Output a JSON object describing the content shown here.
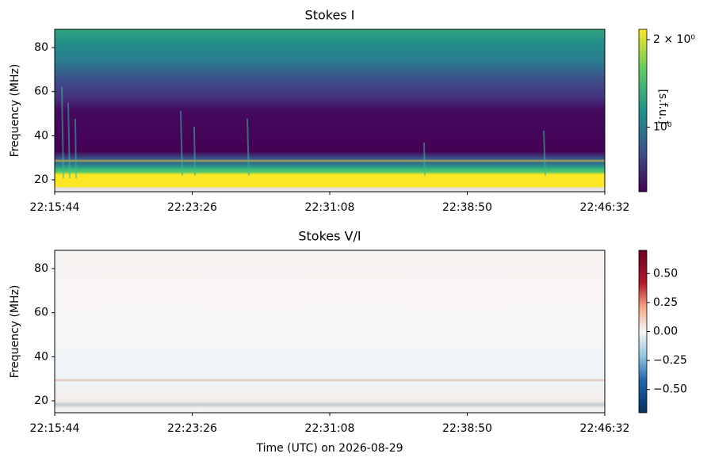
{
  "chart_data": [
    {
      "type": "spectrogram",
      "title": "Stokes I",
      "y_label": "Frequency (MHz)",
      "xlim": [
        80144,
        81992
      ],
      "xticks": [
        {
          "value": 80144,
          "label": "22:15:44"
        },
        {
          "value": 80606,
          "label": "22:23:26"
        },
        {
          "value": 81068,
          "label": "22:31:08"
        },
        {
          "value": 81530,
          "label": "22:38:50"
        },
        {
          "value": 81992,
          "label": "22:46:32"
        }
      ],
      "ylim": [
        14.6,
        88.3
      ],
      "yticks": [
        20,
        40,
        60,
        80
      ],
      "colormap": "viridis",
      "colorbar_log": true,
      "colorbar_label": "[s.f.u.]",
      "clim": [
        0.6,
        2.17
      ],
      "colorbar_ticks": [
        {
          "value": 2,
          "label": "2 × 10⁰"
        },
        {
          "value": 1,
          "label": "10⁰"
        }
      ]
    },
    {
      "type": "spectrogram",
      "title": "Stokes V/I",
      "y_label": "Frequency (MHz)",
      "x_label": "Time (UTC) on 2026-08-29",
      "xlim": [
        80144,
        81992
      ],
      "xticks": [
        {
          "value": 80144,
          "label": "22:15:44"
        },
        {
          "value": 80606,
          "label": "22:23:26"
        },
        {
          "value": 81068,
          "label": "22:31:08"
        },
        {
          "value": 81530,
          "label": "22:38:50"
        },
        {
          "value": 81992,
          "label": "22:46:32"
        }
      ],
      "ylim": [
        14.6,
        88.3
      ],
      "yticks": [
        20,
        40,
        60,
        80
      ],
      "colormap": "RdBu_r",
      "colorbar_log": false,
      "clim": [
        -0.7,
        0.7
      ],
      "colorbar_ticks": [
        {
          "value": 0.5,
          "label": "0.50"
        },
        {
          "value": 0.25,
          "label": "0.25"
        },
        {
          "value": 0,
          "label": "0.00"
        },
        {
          "value": -0.25,
          "label": "−0.25"
        },
        {
          "value": -0.5,
          "label": "−0.50"
        }
      ]
    }
  ]
}
